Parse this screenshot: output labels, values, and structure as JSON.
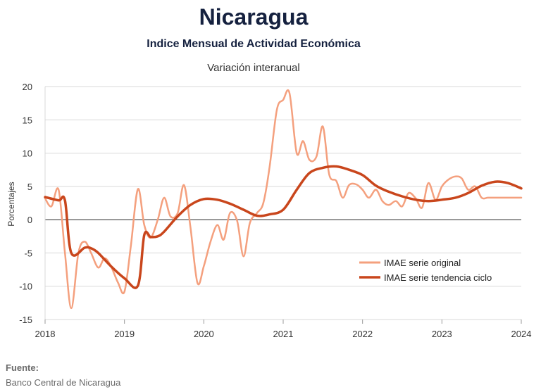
{
  "header": {
    "title": "Nicaragua",
    "subtitle": "Indice Mensual de  Actividad Económica",
    "subtitle2": "Variación interanual"
  },
  "source": {
    "heading": "Fuente:",
    "text": "Banco Central de Nicaragua"
  },
  "colors": {
    "original": "#f4a07e",
    "trend": "#c9461c",
    "grid": "#d9d9d9",
    "zero": "#555555"
  },
  "chart_data": {
    "type": "line",
    "ylabel": "Porcentajes",
    "xlabel": "",
    "ylim": [
      -15,
      20
    ],
    "yticks": [
      20,
      15,
      10,
      5,
      0,
      -5,
      -10,
      -15
    ],
    "xlim": [
      2018,
      2024
    ],
    "xticks": [
      "2018",
      "2019",
      "2020",
      "2021",
      "2022",
      "2023",
      "2024"
    ],
    "grid": true,
    "legend": "lower-right",
    "series": [
      {
        "name": "IMAE serie original",
        "x": [
          2018.0,
          2018.08,
          2018.17,
          2018.25,
          2018.33,
          2018.42,
          2018.5,
          2018.58,
          2018.67,
          2018.75,
          2018.83,
          2018.92,
          2019.0,
          2019.08,
          2019.17,
          2019.25,
          2019.33,
          2019.42,
          2019.5,
          2019.58,
          2019.67,
          2019.75,
          2019.83,
          2019.92,
          2020.0,
          2020.08,
          2020.17,
          2020.25,
          2020.33,
          2020.42,
          2020.5,
          2020.58,
          2020.67,
          2020.75,
          2020.83,
          2020.92,
          2021.0,
          2021.08,
          2021.17,
          2021.25,
          2021.33,
          2021.42,
          2021.5,
          2021.58,
          2021.67,
          2021.75,
          2021.83,
          2021.92,
          2022.0,
          2022.08,
          2022.17,
          2022.25,
          2022.33,
          2022.42,
          2022.5,
          2022.58,
          2022.67,
          2022.75,
          2022.83,
          2022.92,
          2023.0,
          2023.08,
          2023.17,
          2023.25,
          2023.33,
          2023.42,
          2023.5,
          2023.58,
          2023.67,
          2023.75,
          2023.83,
          2023.92,
          2024.0
        ],
        "values": [
          3.2,
          2.0,
          4.5,
          -5.0,
          -13.3,
          -5.0,
          -3.3,
          -5.0,
          -7.2,
          -5.8,
          -7.0,
          -9.5,
          -10.8,
          -4.0,
          4.6,
          -0.8,
          -2.7,
          0.0,
          3.3,
          0.5,
          1.0,
          5.2,
          -1.0,
          -9.5,
          -7.0,
          -3.5,
          -0.8,
          -3.0,
          1.0,
          -0.2,
          -5.5,
          -0.5,
          1.0,
          2.5,
          8.0,
          16.5,
          18.0,
          19.0,
          10.0,
          11.8,
          9.0,
          9.5,
          14.0,
          6.8,
          5.8,
          3.3,
          5.2,
          5.3,
          4.5,
          3.3,
          4.5,
          2.8,
          2.2,
          2.8,
          2.0,
          4.0,
          3.2,
          1.8,
          5.5,
          3.0,
          5.0,
          6.0,
          6.5,
          6.2,
          4.5,
          5.0,
          3.3,
          3.3,
          3.3,
          3.3,
          3.3,
          3.3,
          3.3
        ]
      },
      {
        "name": "IMAE serie  tendencia ciclo",
        "x": [
          2018.0,
          2018.17,
          2018.25,
          2018.33,
          2018.5,
          2018.58,
          2018.67,
          2018.83,
          2019.0,
          2019.17,
          2019.25,
          2019.33,
          2019.42,
          2019.5,
          2019.67,
          2019.83,
          2020.0,
          2020.17,
          2020.33,
          2020.5,
          2020.67,
          2020.83,
          2021.0,
          2021.17,
          2021.33,
          2021.5,
          2021.67,
          2021.83,
          2022.0,
          2022.17,
          2022.33,
          2022.5,
          2022.67,
          2022.83,
          2023.0,
          2023.17,
          2023.33,
          2023.5,
          2023.67,
          2023.83,
          2024.0
        ],
        "values": [
          3.4,
          2.9,
          2.9,
          -5.0,
          -4.2,
          -4.3,
          -5.0,
          -7.0,
          -8.8,
          -9.9,
          -2.3,
          -2.6,
          -2.5,
          -1.8,
          0.5,
          2.2,
          3.1,
          3.0,
          2.4,
          1.5,
          0.6,
          0.8,
          1.5,
          4.5,
          7.0,
          7.8,
          8.0,
          7.5,
          6.7,
          5.1,
          4.2,
          3.5,
          3.0,
          2.8,
          3.0,
          3.3,
          4.0,
          5.1,
          5.7,
          5.5,
          4.7
        ]
      }
    ]
  }
}
